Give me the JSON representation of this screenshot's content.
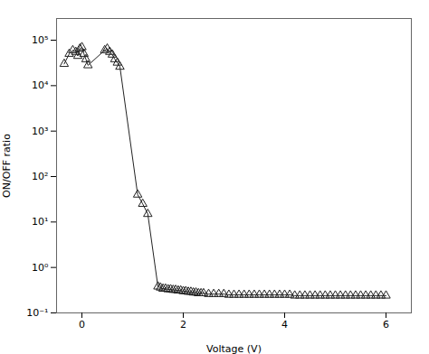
{
  "chart_data": {
    "type": "line",
    "xlabel": "Voltage (V)",
    "ylabel": "ON/OFF ratio",
    "log": "y",
    "grid": false,
    "color": "#222222",
    "marker": "triangle",
    "xlim": [
      -0.5,
      6.5
    ],
    "xticks": [
      0,
      2,
      4,
      6
    ],
    "ylim": [
      0.1,
      300000
    ],
    "yticks": [
      {
        "value": 0.1,
        "label": "10⁻¹"
      },
      {
        "value": 1,
        "label": "10⁰"
      },
      {
        "value": 10,
        "label": "10¹"
      },
      {
        "value": 100,
        "label": "10²"
      },
      {
        "value": 1000,
        "label": "10³"
      },
      {
        "value": 10000,
        "label": "10⁴"
      },
      {
        "value": 100000,
        "label": "10⁵"
      }
    ],
    "x": [
      -0.35,
      -0.25,
      -0.18,
      -0.12,
      -0.08,
      -0.04,
      0.0,
      0.04,
      0.08,
      0.12,
      0.45,
      0.5,
      0.55,
      0.6,
      0.65,
      0.7,
      0.75,
      1.1,
      1.2,
      1.3,
      1.5,
      1.55,
      1.6,
      1.65,
      1.7,
      1.75,
      1.8,
      1.85,
      1.9,
      1.95,
      2.0,
      2.05,
      2.1,
      2.15,
      2.2,
      2.25,
      2.3,
      2.35,
      2.4,
      2.5,
      2.6,
      2.7,
      2.8,
      2.9,
      3.0,
      3.1,
      3.2,
      3.3,
      3.4,
      3.5,
      3.6,
      3.7,
      3.8,
      3.9,
      4.0,
      4.1,
      4.2,
      4.3,
      4.4,
      4.5,
      4.6,
      4.7,
      4.8,
      4.9,
      5.0,
      5.1,
      5.2,
      5.3,
      5.4,
      5.5,
      5.6,
      5.7,
      5.8,
      5.9,
      6.0
    ],
    "values": [
      30000,
      50000,
      60000,
      55000,
      45000,
      65000,
      70000,
      50000,
      38000,
      28000,
      60000,
      65000,
      55000,
      48000,
      38000,
      32000,
      26000,
      40,
      25,
      15,
      0.38,
      0.36,
      0.34,
      0.34,
      0.33,
      0.33,
      0.32,
      0.32,
      0.31,
      0.31,
      0.3,
      0.3,
      0.29,
      0.29,
      0.28,
      0.28,
      0.27,
      0.27,
      0.27,
      0.26,
      0.26,
      0.26,
      0.26,
      0.25,
      0.25,
      0.25,
      0.25,
      0.25,
      0.25,
      0.25,
      0.25,
      0.25,
      0.25,
      0.25,
      0.25,
      0.25,
      0.24,
      0.24,
      0.24,
      0.24,
      0.24,
      0.24,
      0.24,
      0.24,
      0.24,
      0.24,
      0.24,
      0.24,
      0.24,
      0.24,
      0.24,
      0.24,
      0.24,
      0.24,
      0.24
    ]
  }
}
